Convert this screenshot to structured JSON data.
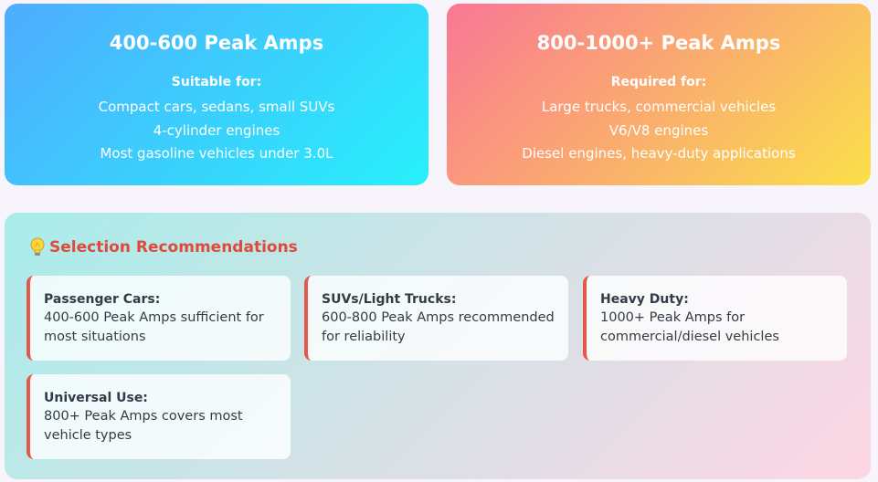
{
  "cards": [
    {
      "title": "400-600 Peak Amps",
      "subtitle": "Suitable for:",
      "items": [
        "Compact cars, sedans, small SUVs",
        "4-cylinder engines",
        "Most gasoline vehicles under 3.0L"
      ]
    },
    {
      "title": "800-1000+ Peak Amps",
      "subtitle": "Required for:",
      "items": [
        "Large trucks, commercial vehicles",
        "V6/V8 engines",
        "Diesel engines, heavy-duty applications"
      ]
    }
  ],
  "recommendations": {
    "icon": "lightbulb-icon",
    "title": "Selection Recommendations",
    "items": [
      {
        "title": "Passenger Cars:",
        "desc": "400-600 Peak Amps sufficient for most situations"
      },
      {
        "title": "SUVs/Light Trucks:",
        "desc": "600-800 Peak Amps recommended for reliability"
      },
      {
        "title": "Heavy Duty:",
        "desc": "1000+ Peak Amps for commercial/diesel vehicles"
      },
      {
        "title": "Universal Use:",
        "desc": "800+ Peak Amps covers most vehicle types"
      }
    ]
  },
  "colors": {
    "left_card_gradient": [
      "#4facfe",
      "#27f0fb"
    ],
    "right_card_gradient": [
      "#f97794",
      "#fbe04a"
    ],
    "panel_gradient": [
      "#a8edea",
      "#fed6e3"
    ],
    "accent_red": "#e04a3a"
  }
}
